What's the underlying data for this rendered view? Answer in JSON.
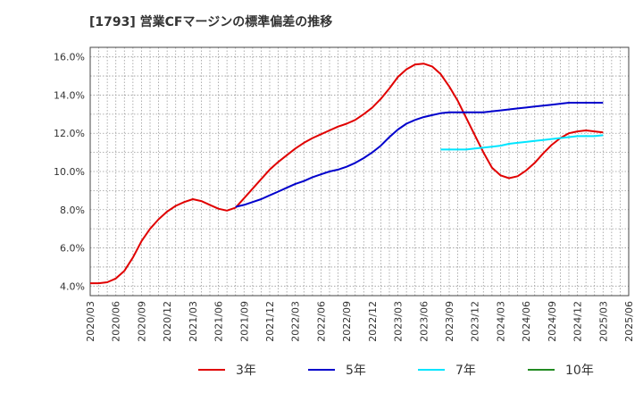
{
  "chart_data": {
    "type": "line",
    "title": "[1793]  営業CFマージンの標準偏差の推移",
    "xlabel": "",
    "ylabel": "",
    "ylim": [
      3.5,
      16.5
    ],
    "y_ticks": [
      "4.0%",
      "6.0%",
      "8.0%",
      "10.0%",
      "12.0%",
      "14.0%",
      "16.0%"
    ],
    "y_tick_values": [
      4,
      6,
      8,
      10,
      12,
      14,
      16
    ],
    "x_ticks": [
      "2020/03",
      "2020/06",
      "2020/09",
      "2020/12",
      "2021/03",
      "2021/06",
      "2021/09",
      "2021/12",
      "2022/03",
      "2022/06",
      "2022/09",
      "2022/12",
      "2023/03",
      "2023/06",
      "2023/09",
      "2023/12",
      "2024/03",
      "2024/06",
      "2024/09",
      "2024/12",
      "2025/03",
      "2025/06"
    ],
    "grid": true,
    "legend_position": "bottom",
    "series": [
      {
        "name": "3年",
        "color": "#e00000",
        "x": [
          "2020/03",
          "2020/04",
          "2020/05",
          "2020/06",
          "2020/07",
          "2020/08",
          "2020/09",
          "2020/10",
          "2020/11",
          "2020/12",
          "2021/01",
          "2021/02",
          "2021/03",
          "2021/04",
          "2021/05",
          "2021/06",
          "2021/07",
          "2021/08",
          "2021/09",
          "2021/10",
          "2021/11",
          "2021/12",
          "2022/01",
          "2022/02",
          "2022/03",
          "2022/04",
          "2022/05",
          "2022/06",
          "2022/07",
          "2022/08",
          "2022/09",
          "2022/10",
          "2022/11",
          "2022/12",
          "2023/01",
          "2023/02",
          "2023/03",
          "2023/04",
          "2023/05",
          "2023/06",
          "2023/07",
          "2023/08",
          "2023/09",
          "2023/10",
          "2023/11",
          "2023/12",
          "2024/01",
          "2024/02",
          "2024/03",
          "2024/04",
          "2024/05",
          "2024/06",
          "2024/07",
          "2024/08",
          "2024/09",
          "2024/10",
          "2024/11",
          "2024/12",
          "2025/01",
          "2025/02",
          "2025/03"
        ],
        "values": [
          4.15,
          4.15,
          4.2,
          4.4,
          4.8,
          5.5,
          6.35,
          7.0,
          7.5,
          7.9,
          8.2,
          8.4,
          8.55,
          8.45,
          8.25,
          8.05,
          7.95,
          8.1,
          8.6,
          9.1,
          9.6,
          10.1,
          10.5,
          10.85,
          11.2,
          11.5,
          11.75,
          11.95,
          12.15,
          12.35,
          12.5,
          12.7,
          13.0,
          13.35,
          13.8,
          14.35,
          14.95,
          15.35,
          15.6,
          15.65,
          15.5,
          15.1,
          14.45,
          13.7,
          12.8,
          11.9,
          11.0,
          10.2,
          9.8,
          9.65,
          9.75,
          10.05,
          10.45,
          10.95,
          11.4,
          11.75,
          12.0,
          12.1,
          12.15,
          12.1,
          12.05
        ]
      },
      {
        "name": "5年",
        "color": "#0000cc",
        "x": [
          "2021/08",
          "2021/09",
          "2021/10",
          "2021/11",
          "2021/12",
          "2022/01",
          "2022/02",
          "2022/03",
          "2022/04",
          "2022/05",
          "2022/06",
          "2022/07",
          "2022/08",
          "2022/09",
          "2022/10",
          "2022/11",
          "2022/12",
          "2023/01",
          "2023/02",
          "2023/03",
          "2023/04",
          "2023/05",
          "2023/06",
          "2023/07",
          "2023/08",
          "2023/09",
          "2023/10",
          "2023/11",
          "2023/12",
          "2024/01",
          "2024/02",
          "2024/03",
          "2024/04",
          "2024/05",
          "2024/06",
          "2024/07",
          "2024/08",
          "2024/09",
          "2024/10",
          "2024/11",
          "2024/12",
          "2025/01",
          "2025/02",
          "2025/03"
        ],
        "values": [
          8.15,
          8.25,
          8.4,
          8.55,
          8.75,
          8.95,
          9.15,
          9.35,
          9.5,
          9.7,
          9.85,
          10.0,
          10.1,
          10.25,
          10.45,
          10.7,
          11.0,
          11.35,
          11.8,
          12.2,
          12.5,
          12.7,
          12.85,
          12.95,
          13.05,
          13.1,
          13.1,
          13.1,
          13.1,
          13.1,
          13.15,
          13.2,
          13.25,
          13.3,
          13.35,
          13.4,
          13.45,
          13.5,
          13.55,
          13.6,
          13.6,
          13.6,
          13.6,
          13.6
        ]
      },
      {
        "name": "7年",
        "color": "#00e5ff",
        "x": [
          "2023/08",
          "2023/09",
          "2023/10",
          "2023/11",
          "2023/12",
          "2024/01",
          "2024/02",
          "2024/03",
          "2024/04",
          "2024/05",
          "2024/06",
          "2024/07",
          "2024/08",
          "2024/09",
          "2024/10",
          "2024/11",
          "2024/12",
          "2025/01",
          "2025/02",
          "2025/03"
        ],
        "values": [
          11.15,
          11.15,
          11.15,
          11.15,
          11.2,
          11.25,
          11.3,
          11.35,
          11.45,
          11.5,
          11.55,
          11.6,
          11.65,
          11.7,
          11.75,
          11.8,
          11.85,
          11.85,
          11.85,
          11.9
        ]
      },
      {
        "name": "10年",
        "color": "#228b22",
        "x": [],
        "values": []
      }
    ]
  }
}
